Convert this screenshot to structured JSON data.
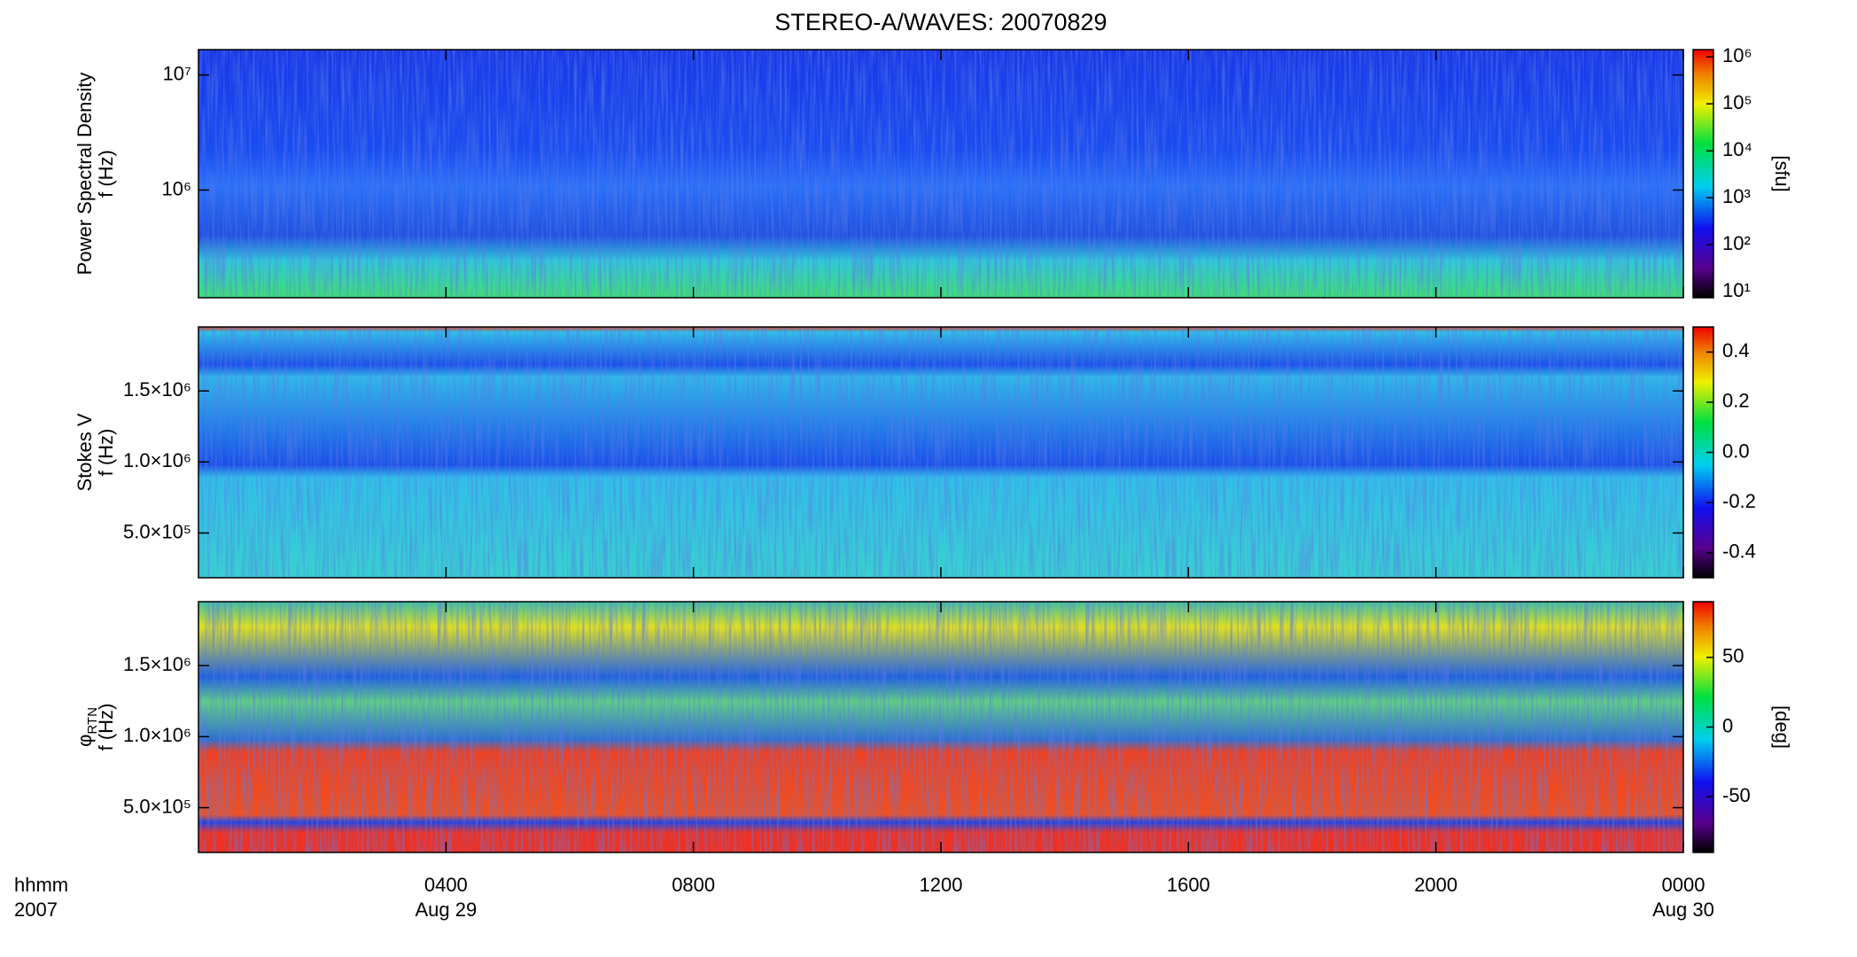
{
  "chart_data": {
    "type": "spectrogram",
    "title": "STEREO-A/WAVES: 20070829",
    "xlabel": [
      "hhmm",
      "2007"
    ],
    "xlim": [
      0,
      24
    ],
    "xticks": [
      {
        "value": 4,
        "label": "0400"
      },
      {
        "value": 8,
        "label": "0800"
      },
      {
        "value": 12,
        "label": "1200"
      },
      {
        "value": 16,
        "label": "1600"
      },
      {
        "value": 20,
        "label": "2000"
      },
      {
        "value": 24,
        "label": "0000"
      }
    ],
    "xdates": [
      {
        "value": 4,
        "label": "Aug 29"
      },
      {
        "value": 24,
        "label": "Aug 30"
      }
    ],
    "panels": [
      {
        "quantity": "Power Spectral Density",
        "ylabel": "f (Hz)",
        "ylog": true,
        "ylim": [
          116000,
          16600000
        ],
        "yticks": [
          {
            "value": 1000000,
            "label": "10⁶"
          },
          {
            "value": 10000000,
            "label": "10⁷"
          }
        ],
        "colorbar": {
          "label": "[sfu]",
          "log": true,
          "lim": [
            7.4,
            1430000
          ],
          "ticks": [
            {
              "value": 10,
              "label": "10¹"
            },
            {
              "value": 100,
              "label": "10²"
            },
            {
              "value": 1000,
              "label": "10³"
            },
            {
              "value": 10000,
              "label": "10⁴"
            },
            {
              "value": 100000,
              "label": "10⁵"
            },
            {
              "value": 1000000,
              "label": "10⁶"
            }
          ]
        }
      },
      {
        "quantity": "Stokes V",
        "ylabel": "f (Hz)",
        "ylog": false,
        "ylim": [
          185000,
          1950000
        ],
        "yticks": [
          {
            "value": 500000,
            "label": "5.0×10⁵"
          },
          {
            "value": 1000000,
            "label": "1.0×10⁶"
          },
          {
            "value": 1500000,
            "label": "1.5×10⁶"
          }
        ],
        "colorbar": {
          "label": null,
          "log": false,
          "lim": [
            -0.5,
            0.5
          ],
          "ticks": [
            -0.4,
            -0.2,
            {
              "value": 0,
              "label": "0.0"
            },
            0.2,
            0.4
          ]
        }
      },
      {
        "quantity": "φ",
        "quantity_sub": "RTN",
        "ylabel": "f (Hz)",
        "ylog": false,
        "ylim": [
          185000,
          1950000
        ],
        "yticks": [
          {
            "value": 500000,
            "label": "5.0×10⁵"
          },
          {
            "value": 1000000,
            "label": "1.0×10⁶"
          },
          {
            "value": 1500000,
            "label": "1.5×10⁶"
          }
        ],
        "colorbar": {
          "label": "[deg]",
          "log": false,
          "lim": [
            -90,
            90
          ],
          "ticks": [
            -50,
            0,
            50
          ]
        }
      }
    ]
  }
}
